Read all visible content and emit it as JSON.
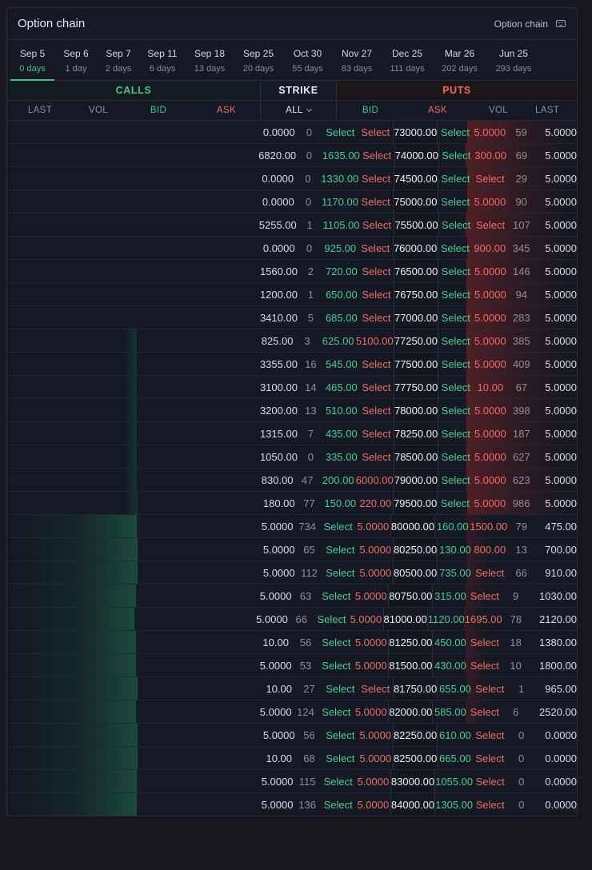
{
  "header": {
    "title": "Option chain",
    "right_label": "Option chain",
    "icon": "keyboard-icon"
  },
  "tabs": [
    {
      "date": "Sep 5",
      "days": "0 days",
      "active": true
    },
    {
      "date": "Sep 6",
      "days": "1 day"
    },
    {
      "date": "Sep 7",
      "days": "2 days"
    },
    {
      "date": "Sep 11",
      "days": "6 days"
    },
    {
      "date": "Sep 18",
      "days": "13 days"
    },
    {
      "date": "Sep 25",
      "days": "20 days"
    },
    {
      "date": "Oct 30",
      "days": "55 days"
    },
    {
      "date": "Nov 27",
      "days": "83 days"
    },
    {
      "date": "Dec 25",
      "days": "111 days"
    },
    {
      "date": "Mar 26",
      "days": "202 days"
    },
    {
      "date": "Jun 25",
      "days": "293 days"
    }
  ],
  "groups": {
    "calls": "CALLS",
    "strike": "STRIKE",
    "puts": "PUTS"
  },
  "columns": {
    "call_last": "LAST",
    "call_vol": "VOL",
    "call_bid": "BID",
    "call_ask": "ASK",
    "strike": "ALL",
    "put_bid": "BID",
    "put_ask": "ASK",
    "put_vol": "VOL",
    "put_last": "LAST"
  },
  "colors": {
    "accent_green": "#3ec98d",
    "accent_red": "#ee6a63",
    "background": "#141923"
  },
  "rows": [
    [
      "0.0000",
      "0",
      "Select",
      "Select",
      "73000.00",
      "Select",
      "5.0000",
      "59",
      "5.0000"
    ],
    [
      "6820.00",
      "0",
      "1635.00",
      "Select",
      "74000.00",
      "Select",
      "300.00",
      "69",
      "5.0000"
    ],
    [
      "0.0000",
      "0",
      "1330.00",
      "Select",
      "74500.00",
      "Select",
      "Select",
      "29",
      "5.0000"
    ],
    [
      "0.0000",
      "0",
      "1170.00",
      "Select",
      "75000.00",
      "Select",
      "5.0000",
      "90",
      "5.0000"
    ],
    [
      "5255.00",
      "1",
      "1105.00",
      "Select",
      "75500.00",
      "Select",
      "Select",
      "107",
      "5.0000"
    ],
    [
      "0.0000",
      "0",
      "925.00",
      "Select",
      "76000.00",
      "Select",
      "900.00",
      "345",
      "5.0000"
    ],
    [
      "1560.00",
      "2",
      "720.00",
      "Select",
      "76500.00",
      "Select",
      "5.0000",
      "146",
      "5.0000"
    ],
    [
      "1200.00",
      "1",
      "650.00",
      "Select",
      "76750.00",
      "Select",
      "5.0000",
      "94",
      "5.0000"
    ],
    [
      "3410.00",
      "5",
      "685.00",
      "Select",
      "77000.00",
      "Select",
      "5.0000",
      "283",
      "5.0000"
    ],
    [
      "825.00",
      "3",
      "625.00",
      "5100.00",
      "77250.00",
      "Select",
      "5.0000",
      "385",
      "5.0000"
    ],
    [
      "3355.00",
      "16",
      "545.00",
      "Select",
      "77500.00",
      "Select",
      "5.0000",
      "409",
      "5.0000"
    ],
    [
      "3100.00",
      "14",
      "465.00",
      "Select",
      "77750.00",
      "Select",
      "10.00",
      "67",
      "5.0000"
    ],
    [
      "3200.00",
      "13",
      "510.00",
      "Select",
      "78000.00",
      "Select",
      "5.0000",
      "398",
      "5.0000"
    ],
    [
      "1315.00",
      "7",
      "435.00",
      "Select",
      "78250.00",
      "Select",
      "5.0000",
      "187",
      "5.0000"
    ],
    [
      "1050.00",
      "0",
      "335.00",
      "Select",
      "78500.00",
      "Select",
      "5.0000",
      "627",
      "5.0000"
    ],
    [
      "830.00",
      "47",
      "200.00",
      "6000.00",
      "79000.00",
      "Select",
      "5.0000",
      "623",
      "5.0000"
    ],
    [
      "180.00",
      "77",
      "150.00",
      "220.00",
      "79500.00",
      "Select",
      "5.0000",
      "986",
      "5.0000"
    ],
    [
      "5.0000",
      "734",
      "Select",
      "5.0000",
      "80000.00",
      "160.00",
      "1500.00",
      "79",
      "475.00"
    ],
    [
      "5.0000",
      "65",
      "Select",
      "5.0000",
      "80250.00",
      "130.00",
      "800.00",
      "13",
      "700.00"
    ],
    [
      "5.0000",
      "112",
      "Select",
      "5.0000",
      "80500.00",
      "735.00",
      "Select",
      "66",
      "910.00"
    ],
    [
      "5.0000",
      "63",
      "Select",
      "5.0000",
      "80750.00",
      "315.00",
      "Select",
      "9",
      "1030.00"
    ],
    [
      "5.0000",
      "66",
      "Select",
      "5.0000",
      "81000.00",
      "1120.00",
      "1695.00",
      "78",
      "2120.00"
    ],
    [
      "10.00",
      "56",
      "Select",
      "5.0000",
      "81250.00",
      "450.00",
      "Select",
      "18",
      "1380.00"
    ],
    [
      "5.0000",
      "53",
      "Select",
      "5.0000",
      "81500.00",
      "430.00",
      "Select",
      "10",
      "1800.00"
    ],
    [
      "10.00",
      "27",
      "Select",
      "Select",
      "81750.00",
      "655.00",
      "Select",
      "1",
      "965.00"
    ],
    [
      "5.0000",
      "124",
      "Select",
      "5.0000",
      "82000.00",
      "585.00",
      "Select",
      "6",
      "2520.00"
    ],
    [
      "5.0000",
      "56",
      "Select",
      "5.0000",
      "82250.00",
      "610.00",
      "Select",
      "0",
      "0.0000"
    ],
    [
      "10.00",
      "68",
      "Select",
      "5.0000",
      "82500.00",
      "665.00",
      "Select",
      "0",
      "0.0000"
    ],
    [
      "5.0000",
      "115",
      "Select",
      "5.0000",
      "83000.00",
      "1055.00",
      "Select",
      "0",
      "0.0000"
    ],
    [
      "5.0000",
      "136",
      "Select",
      "5.0000",
      "84000.00",
      "1305.00",
      "Select",
      "0",
      "0.0000"
    ]
  ],
  "itm": {
    "calls_from_row": 17,
    "puts_to_row": 16
  }
}
